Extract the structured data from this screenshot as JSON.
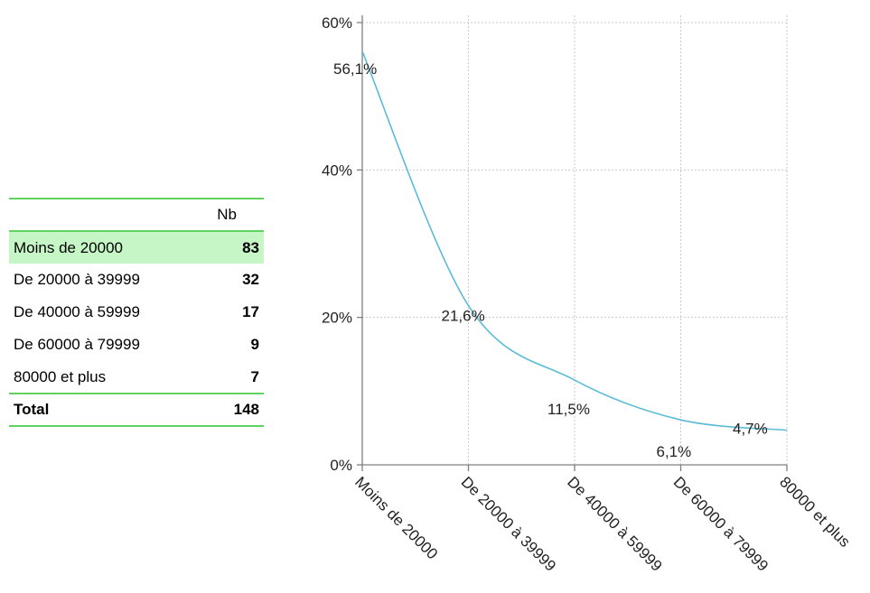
{
  "table": {
    "header": {
      "label": "",
      "count": "Nb"
    },
    "rows": [
      {
        "label": "Moins de 20000",
        "count": "83",
        "highlighted": true
      },
      {
        "label": "De 20000 à 39999",
        "count": "32"
      },
      {
        "label": "De 40000 à 59999",
        "count": "17"
      },
      {
        "label": "De 60000 à 79999",
        "count": "9"
      },
      {
        "label": "80000 et plus",
        "count": "7"
      }
    ],
    "total": {
      "label": "Total",
      "count": "148"
    }
  },
  "colors": {
    "line": "#5bbcd6",
    "table_rule": "#5fd35f",
    "table_highlight": "#c6f5c6"
  },
  "chart_data": {
    "type": "line",
    "categories": [
      "Moins de 20000",
      "De 20000 à 39999",
      "De 40000 à 59999",
      "De 60000 à 79999",
      "80000 et plus"
    ],
    "series": [
      {
        "values": [
          56.1,
          21.6,
          11.5,
          6.1,
          4.7
        ],
        "labels": [
          "56,1%",
          "21,6%",
          "11,5%",
          "6,1%",
          "4,7%"
        ]
      }
    ],
    "yticks": [
      "0%",
      "20%",
      "40%",
      "60%"
    ],
    "ytick_values": [
      0,
      20,
      40,
      60
    ],
    "ylim": [
      0,
      60
    ],
    "grid": true,
    "smooth": true,
    "legend": "none",
    "xlabel": "",
    "ylabel": ""
  }
}
